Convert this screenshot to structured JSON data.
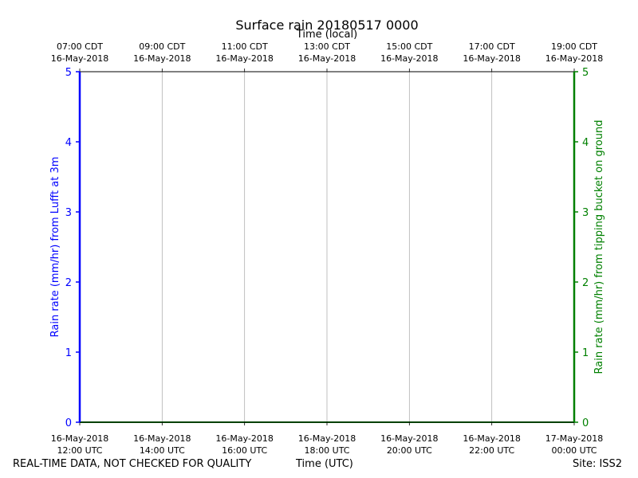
{
  "chart_data": {
    "type": "line",
    "title": "Surface rain 20180517 0000",
    "xlabel": "Time (UTC)",
    "x2label": "Time (local)",
    "ylabel": "Rain rate (mm/hr) from Lufft at 3m",
    "y2label": "Rain rate (mm/hr) from tipping bucket on ground",
    "xlim": [
      "2018-05-16T12:00Z",
      "2018-05-17T00:00Z"
    ],
    "ylim": [
      0,
      5
    ],
    "y2lim": [
      0,
      5
    ],
    "grid": "x-only",
    "x_ticks_utc": [
      [
        "16-May-2018",
        "12:00 UTC"
      ],
      [
        "16-May-2018",
        "14:00 UTC"
      ],
      [
        "16-May-2018",
        "16:00 UTC"
      ],
      [
        "16-May-2018",
        "18:00 UTC"
      ],
      [
        "16-May-2018",
        "20:00 UTC"
      ],
      [
        "16-May-2018",
        "22:00 UTC"
      ],
      [
        "17-May-2018",
        "00:00 UTC"
      ]
    ],
    "x_ticks_local": [
      [
        "07:00 CDT",
        "16-May-2018"
      ],
      [
        "09:00 CDT",
        "16-May-2018"
      ],
      [
        "11:00 CDT",
        "16-May-2018"
      ],
      [
        "13:00 CDT",
        "16-May-2018"
      ],
      [
        "15:00 CDT",
        "16-May-2018"
      ],
      [
        "17:00 CDT",
        "16-May-2018"
      ],
      [
        "19:00 CDT",
        "16-May-2018"
      ]
    ],
    "y_ticks": [
      "0",
      "1",
      "2",
      "3",
      "4",
      "5"
    ],
    "y2_ticks": [
      "0",
      "1",
      "2",
      "3",
      "4",
      "5"
    ],
    "series": [
      {
        "axis": "right",
        "color": "#008000",
        "x": [
          "2018-05-16T12:00Z",
          "2018-05-17T00:00Z"
        ],
        "y": [
          0,
          0
        ]
      }
    ],
    "colors": {
      "left_axis": "#0000ff",
      "right_axis": "#008000",
      "grid": "#b0b0b0"
    }
  },
  "footer": {
    "disclaimer": "REAL-TIME DATA, NOT CHECKED FOR QUALITY",
    "xlabel": "Time (UTC)",
    "site": "Site: ISS2"
  }
}
